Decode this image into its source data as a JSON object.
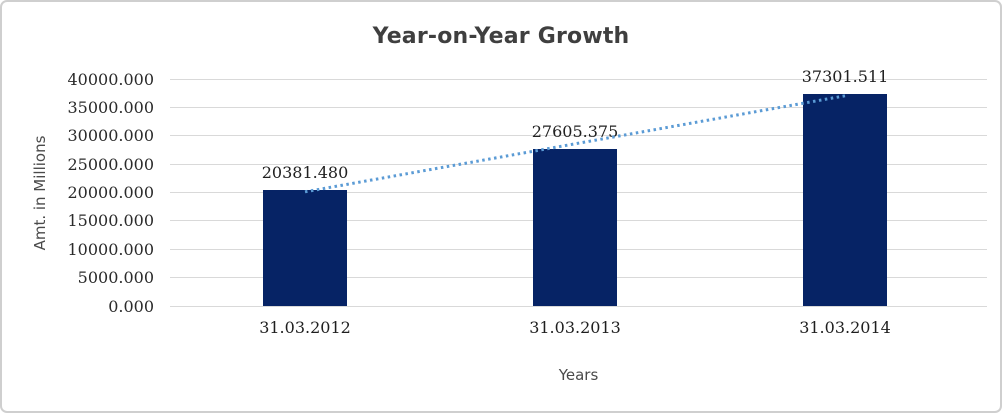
{
  "chart_data": {
    "type": "bar",
    "title": "Year-on-Year Growth",
    "xlabel": "Years",
    "ylabel": "Amt. in Millions",
    "categories": [
      "31.03.2012",
      "31.03.2013",
      "31.03.2014"
    ],
    "values": [
      20381.48,
      27605.375,
      37301.511
    ],
    "value_labels": [
      "20381.480",
      "27605.375",
      "37301.511"
    ],
    "ylim": [
      0,
      40000
    ],
    "ytick_step": 5000,
    "ytick_decimals": 3,
    "grid": "horizontal-only",
    "legend": "none",
    "trendline": {
      "type": "linear",
      "style": "dotted",
      "spans": "first-bar-center-to-last-bar-center"
    },
    "colors": {
      "bar": "#062365",
      "trendline": "#5b9bd5",
      "gridline": "#d9d9d9",
      "title_text": "#3f3f3f",
      "tick_text": "#2b2b2b",
      "axis_title_text": "#4a4a4a",
      "frame_border": "#cfcfcf",
      "background": "#ffffff"
    }
  }
}
